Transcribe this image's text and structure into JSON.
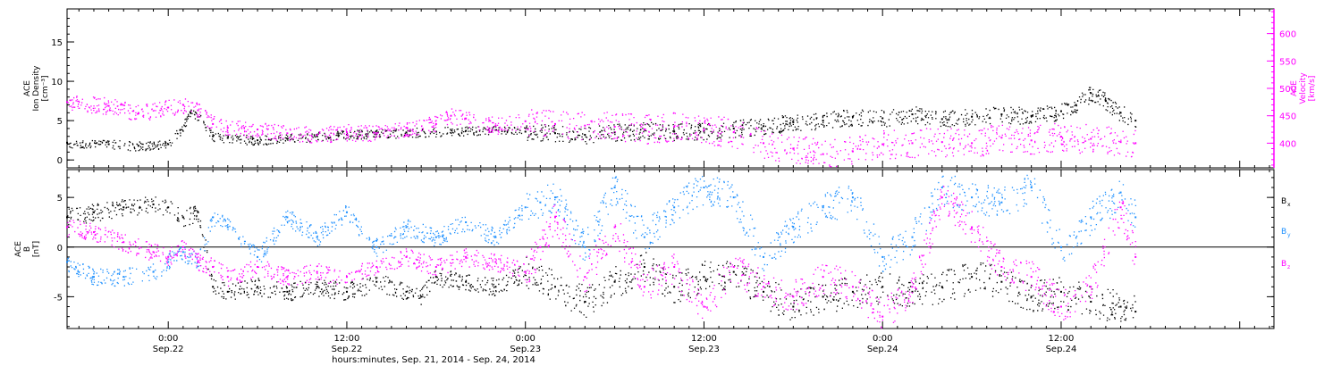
{
  "xaxis": {
    "title": "hours:minutes, Sep. 21, 2014 - Sep. 24, 2014",
    "start_hours": -6.8,
    "end_hours": 74.3,
    "ticks": [
      {
        "t": 0,
        "top": "0:00",
        "bottom": "Sep.22"
      },
      {
        "t": 12,
        "top": "12:00",
        "bottom": "Sep.22"
      },
      {
        "t": 24,
        "top": "0:00",
        "bottom": "Sep.23"
      },
      {
        "t": 36,
        "top": "12:00",
        "bottom": "Sep.23"
      },
      {
        "t": 48,
        "top": "0:00",
        "bottom": "Sep.24"
      },
      {
        "t": 60,
        "top": "12:00",
        "bottom": "Sep.24"
      }
    ],
    "minor_step_hours": 1
  },
  "chart_data": [
    {
      "type": "scatter",
      "ylabel_left": [
        "ACE",
        "Ion Density",
        "[cm⁻³]"
      ],
      "ylabel_right": [
        "ACE",
        "Velocity",
        "[km/s]"
      ],
      "ylim_left": [
        -1,
        19.2
      ],
      "ylim_right": [
        355,
        645
      ],
      "yticks_left": [
        0,
        5,
        10,
        15
      ],
      "yticks_right": [
        400,
        450,
        500,
        550,
        600
      ],
      "series": [
        {
          "axis": "left",
          "color": "#000000",
          "x": [
            -6.8,
            -4,
            -2,
            0,
            0.8,
            1.5,
            2,
            3,
            4,
            6,
            8,
            10,
            12,
            14,
            16,
            18,
            20,
            22,
            24,
            26,
            28,
            30,
            32,
            34,
            36,
            38,
            40,
            42,
            44,
            46,
            48,
            50,
            52,
            54,
            56,
            58,
            60,
            61,
            62,
            63,
            64,
            65
          ],
          "values": [
            2.2,
            2,
            1.8,
            2,
            3.8,
            6,
            5.5,
            3,
            2.8,
            2.5,
            2.7,
            3,
            3.2,
            3.3,
            3.5,
            3.6,
            3.7,
            3.8,
            3.6,
            3.4,
            3.2,
            3.5,
            3.8,
            3.6,
            3.7,
            4,
            4.3,
            4.8,
            5,
            5.5,
            5.3,
            5.8,
            5.2,
            5.5,
            5.8,
            5.6,
            6.2,
            7,
            8.5,
            7.5,
            6,
            5
          ]
        },
        {
          "axis": "right",
          "color": "#ff00ff",
          "x": [
            -6.8,
            -4,
            -2,
            0,
            1,
            2,
            3,
            4,
            6,
            8,
            10,
            12,
            14,
            16,
            18,
            19,
            20,
            22,
            24,
            26,
            28,
            30,
            32,
            34,
            36,
            38,
            40,
            42,
            44,
            46,
            48,
            50,
            52,
            54,
            56,
            58,
            60,
            62,
            64,
            65
          ],
          "values": [
            475,
            468,
            455,
            465,
            470,
            460,
            435,
            428,
            425,
            418,
            415,
            420,
            418,
            428,
            435,
            450,
            445,
            432,
            440,
            435,
            432,
            430,
            425,
            430,
            425,
            420,
            400,
            390,
            380,
            385,
            398,
            400,
            402,
            400,
            410,
            405,
            412,
            408,
            402,
            400
          ]
        }
      ]
    },
    {
      "type": "scatter",
      "ylabel_left": [
        "ACE",
        "B",
        "[nT]"
      ],
      "ylim": [
        -8.2,
        7.8
      ],
      "yticks": [
        -5,
        0,
        5
      ],
      "zero_line": true,
      "series": [
        {
          "name": "B",
          "subscript": "x",
          "color": "#000000",
          "x": [
            -6.8,
            -5,
            -3,
            -1,
            0,
            1,
            2,
            3,
            4,
            6,
            8,
            10,
            12,
            14,
            16,
            17,
            18,
            20,
            22,
            24,
            26,
            28,
            30,
            32,
            34,
            36,
            38,
            40,
            42,
            44,
            46,
            48,
            50,
            52,
            54,
            56,
            58,
            60,
            62,
            64,
            65
          ],
          "values": [
            3,
            3.5,
            4,
            4.3,
            4,
            3,
            3.5,
            -4,
            -4.5,
            -4,
            -4.5,
            -4,
            -4.5,
            -3.5,
            -4.5,
            -5,
            -3,
            -3.5,
            -4,
            -2.5,
            -4,
            -5.5,
            -3.5,
            -2,
            -4,
            -3,
            -2.5,
            -4.5,
            -6,
            -5,
            -4.5,
            -4,
            -4.5,
            -4,
            -3,
            -3.5,
            -5,
            -4.5,
            -5.5,
            -6,
            -6.5
          ]
        },
        {
          "name": "B",
          "subscript": "y",
          "color": "#1e90ff",
          "x": [
            -6.8,
            -5,
            -3,
            -1,
            0,
            1,
            2,
            3,
            4,
            6,
            8,
            10,
            12,
            14,
            16,
            18,
            20,
            22,
            24,
            25,
            26,
            28,
            30,
            32,
            34,
            36,
            38,
            40,
            42,
            44,
            46,
            48,
            50,
            52,
            54,
            56,
            58,
            60,
            62,
            64,
            65
          ],
          "values": [
            -1.5,
            -3,
            -3,
            -2.5,
            -1.5,
            -0.5,
            -1.5,
            3,
            2,
            -1,
            3,
            1,
            3.5,
            0,
            2,
            1,
            2.5,
            1,
            4,
            4.5,
            5,
            0,
            6,
            1,
            4,
            6,
            5,
            -1,
            2,
            4,
            5,
            -1,
            1,
            6,
            5,
            4.5,
            6,
            0,
            3,
            5.5,
            3
          ]
        },
        {
          "name": "B",
          "subscript": "z",
          "color": "#ff00ff",
          "x": [
            -6.8,
            -5,
            -3,
            -1,
            0,
            1,
            2,
            3,
            4,
            6,
            8,
            10,
            12,
            14,
            16,
            18,
            20,
            22,
            24,
            25,
            26,
            28,
            30,
            32,
            34,
            36,
            38,
            40,
            42,
            44,
            46,
            48,
            50,
            52,
            54,
            56,
            58,
            60,
            62,
            64,
            65
          ],
          "values": [
            2,
            1.5,
            0.5,
            -0.5,
            -1,
            0,
            -1.5,
            -2,
            -3,
            -2,
            -3,
            -2.5,
            -3,
            -2,
            -1,
            -2,
            -1,
            -1.5,
            -2.5,
            0,
            3,
            -3,
            2,
            -4,
            -2,
            -6,
            -2,
            -4,
            -5,
            -3,
            -4,
            -7,
            -4,
            5,
            2,
            -2,
            -3,
            -6,
            -4,
            4,
            -1
          ]
        }
      ]
    }
  ]
}
